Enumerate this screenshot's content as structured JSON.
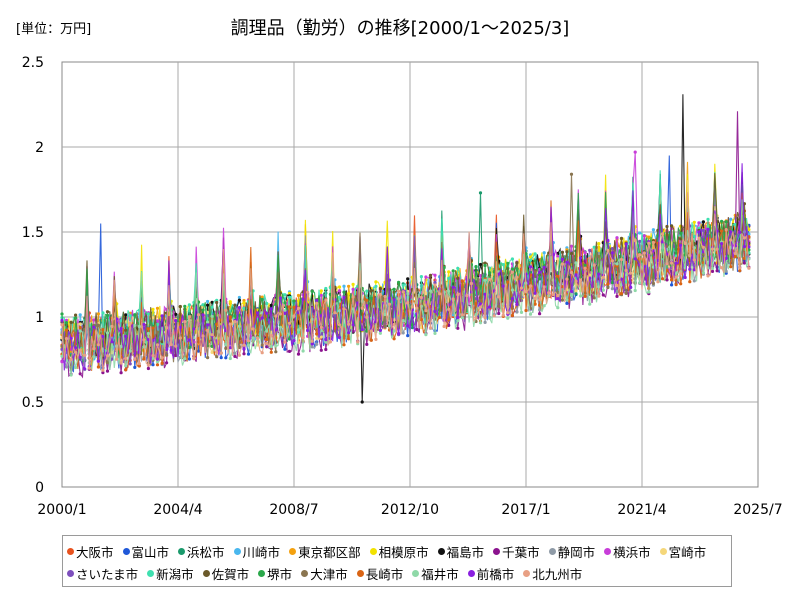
{
  "unit_label": "[単位：万円]",
  "chart_data": {
    "type": "line",
    "title": "調理品（勤労）の推移[2000/1～2025/3]",
    "xlabel": "",
    "ylabel": "",
    "x_start": "2000-01",
    "x_end": "2025-03",
    "xlim": [
      "2000-01",
      "2025-07"
    ],
    "ylim": [
      0,
      2.5
    ],
    "x_ticks": [
      "2000/1",
      "2004/4",
      "2008/7",
      "2012/10",
      "2017/1",
      "2021/4",
      "2025/7"
    ],
    "y_ticks": [
      "0",
      "0.5",
      "1",
      "1.5",
      "2",
      "2.5"
    ],
    "grid": true,
    "legend_position": "bottom",
    "trend_note_values": {
      "start_level": 0.82,
      "end_level": 1.42
    },
    "series": [
      {
        "name": "大阪市",
        "color": "#e8521e"
      },
      {
        "name": "富山市",
        "color": "#1f58d8"
      },
      {
        "name": "浜松市",
        "color": "#1a9a6c"
      },
      {
        "name": "川崎市",
        "color": "#49b7ee"
      },
      {
        "name": "東京都区部",
        "color": "#f4a10f"
      },
      {
        "name": "相模原市",
        "color": "#f2e200"
      },
      {
        "name": "福島市",
        "color": "#111111"
      },
      {
        "name": "千葉市",
        "color": "#8b138e"
      },
      {
        "name": "静岡市",
        "color": "#8e9aa6"
      },
      {
        "name": "横浜市",
        "color": "#c83dd9"
      },
      {
        "name": "宮崎市",
        "color": "#f5d77a"
      },
      {
        "name": "さいたま市",
        "color": "#7d4fbd"
      },
      {
        "name": "新潟市",
        "color": "#3fe0b0"
      },
      {
        "name": "佐賀市",
        "color": "#6b5a2a"
      },
      {
        "name": "堺市",
        "color": "#2aa84a"
      },
      {
        "name": "大津市",
        "color": "#8a7550"
      },
      {
        "name": "長崎市",
        "color": "#d96414"
      },
      {
        "name": "福井市",
        "color": "#8fd9a8"
      },
      {
        "name": "前橋市",
        "color": "#8a1fe0"
      },
      {
        "name": "北九州市",
        "color": "#e8a084"
      }
    ],
    "peaks": [
      {
        "series": "富山市",
        "x": "2001-06",
        "y": 1.55
      },
      {
        "series": "福島市",
        "x": "2011-01",
        "y": 0.5
      },
      {
        "series": "浜松市",
        "x": "2015-05",
        "y": 1.73
      },
      {
        "series": "大津市",
        "x": "2018-09",
        "y": 1.84
      },
      {
        "series": "横浜市",
        "x": "2021-01",
        "y": 1.97
      },
      {
        "series": "富山市",
        "x": "2022-04",
        "y": 1.95
      },
      {
        "series": "福島市",
        "x": "2022-10",
        "y": 2.31
      },
      {
        "series": "千葉市",
        "x": "2024-10",
        "y": 2.21
      }
    ]
  }
}
